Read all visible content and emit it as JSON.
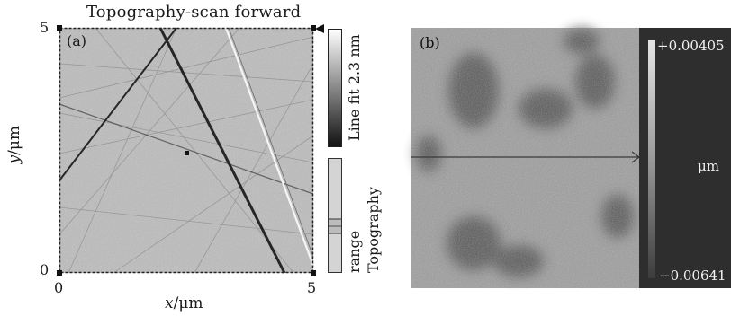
{
  "panel_a": {
    "label": "(a)",
    "title": "Topography-scan forward",
    "x_axis": {
      "label": "x",
      "unit": "/μm",
      "ticks": [
        "0",
        "5"
      ]
    },
    "y_axis": {
      "label": "y",
      "unit": "/μm",
      "ticks": [
        "0",
        "5"
      ]
    },
    "colorbar_label": "Line fit 2.3 nm",
    "range_label_line1": "Topography",
    "range_label_line2": "range"
  },
  "panel_b": {
    "label": "(b)",
    "colorbar_max": "+0.00405",
    "colorbar_min": "−0.00641",
    "colorbar_unit": "μm"
  }
}
